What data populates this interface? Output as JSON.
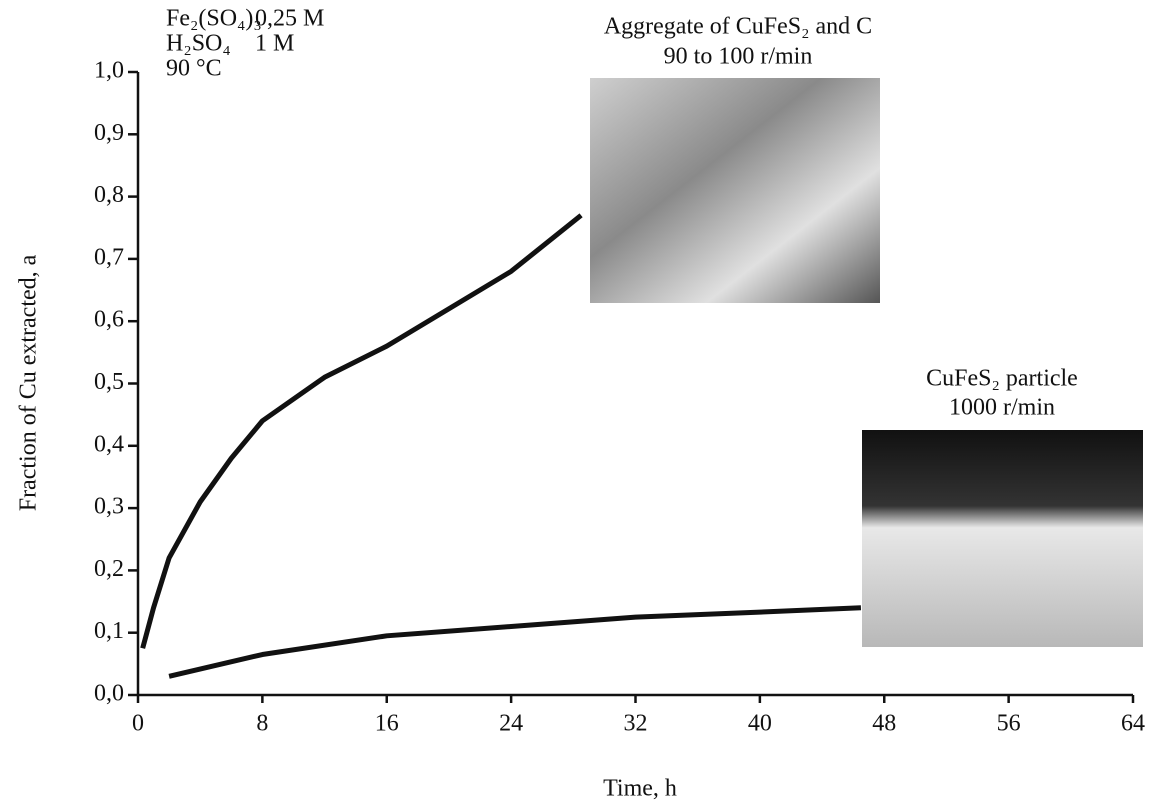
{
  "chart_data": {
    "type": "line",
    "xlabel": "Time, h",
    "ylabel": "Fraction of Cu extracted, a",
    "xlim": [
      0,
      64
    ],
    "xticks": [
      0,
      8,
      16,
      24,
      32,
      40,
      48,
      56,
      64
    ],
    "ylim": [
      0,
      1
    ],
    "yticks": [
      {
        "value": 0,
        "label": "0,0"
      },
      {
        "value": 0.1,
        "label": "0,1"
      },
      {
        "value": 0.2,
        "label": "0,2"
      },
      {
        "value": 0.3,
        "label": "0,3"
      },
      {
        "value": 0.4,
        "label": "0,4"
      },
      {
        "value": 0.5,
        "label": "0,5"
      },
      {
        "value": 0.6,
        "label": "0,6"
      },
      {
        "value": 0.7,
        "label": "0,7"
      },
      {
        "value": 0.8,
        "label": "0,8"
      },
      {
        "value": 0.9,
        "label": "0,9"
      },
      {
        "value": 1,
        "label": "1,0"
      }
    ],
    "series": [
      {
        "color": "#111111",
        "x": [
          0.3,
          1,
          2,
          4,
          6,
          8,
          12,
          16,
          20,
          24,
          28.5
        ],
        "values": [
          0.075,
          0.14,
          0.22,
          0.31,
          0.38,
          0.44,
          0.51,
          0.56,
          0.62,
          0.68,
          0.77
        ]
      },
      {
        "color": "#111111",
        "x": [
          2,
          8,
          16,
          24,
          32,
          40,
          46.5
        ],
        "values": [
          0.03,
          0.065,
          0.095,
          0.11,
          0.125,
          0.133,
          0.14
        ]
      }
    ],
    "conditions": [
      [
        "Fe₂(SO₄)₃",
        "0,25 M"
      ],
      [
        "H₂SO₄",
        "1 M"
      ],
      [
        "90 °C"
      ]
    ],
    "annotations": [
      {
        "lines": [
          "Aggregate of CuFeS₂ and C",
          "90 to 100 r/min"
        ]
      },
      {
        "lines": [
          "CuFeS₂ particle",
          "1000 r/min"
        ]
      }
    ]
  }
}
